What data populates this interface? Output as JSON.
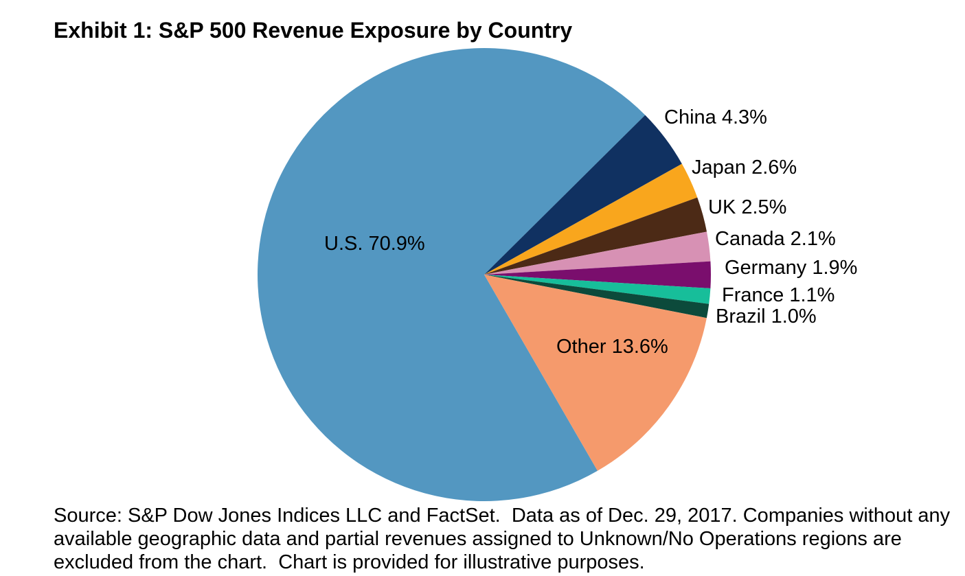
{
  "chart_title": "Exhibit 1: S&P 500 Revenue Exposure by Country",
  "chart_data": {
    "type": "pie",
    "title": "Exhibit 1: S&P 500 Revenue Exposure by Country",
    "start_angle_deg_clockwise_from_north": 150,
    "direction": "clockwise",
    "legend_position": "labels-adjacent-to-slices",
    "slices": [
      {
        "name": "U.S.",
        "value": 70.9,
        "label": "U.S. 70.9%",
        "color": "#5397C1"
      },
      {
        "name": "China",
        "value": 4.3,
        "label": "China 4.3%",
        "color": "#103161"
      },
      {
        "name": "Japan",
        "value": 2.6,
        "label": "Japan 2.6%",
        "color": "#F9A61D"
      },
      {
        "name": "UK",
        "value": 2.5,
        "label": "UK 2.5%",
        "color": "#4C2A16"
      },
      {
        "name": "Canada",
        "value": 2.1,
        "label": "Canada 2.1%",
        "color": "#D791B4"
      },
      {
        "name": "Germany",
        "value": 1.9,
        "label": "Germany 1.9%",
        "color": "#7A0E6D"
      },
      {
        "name": "France",
        "value": 1.1,
        "label": "France 1.1%",
        "color": "#17BE9A"
      },
      {
        "name": "Brazil",
        "value": 1.0,
        "label": "Brazil 1.0%",
        "color": "#0C4A3B"
      },
      {
        "name": "Other",
        "value": 13.6,
        "label": "Other 13.6%",
        "color": "#F59A6C"
      }
    ]
  },
  "source": {
    "lines": [
      "Source: S&P Dow Jones Indices LLC and FactSet.  Data as of Dec. 29, 2017. Companies without any",
      "available geographic data and partial revenues assigned to Unknown/No Operations regions are",
      "excluded from the chart.  Chart is provided for illustrative purposes."
    ]
  }
}
